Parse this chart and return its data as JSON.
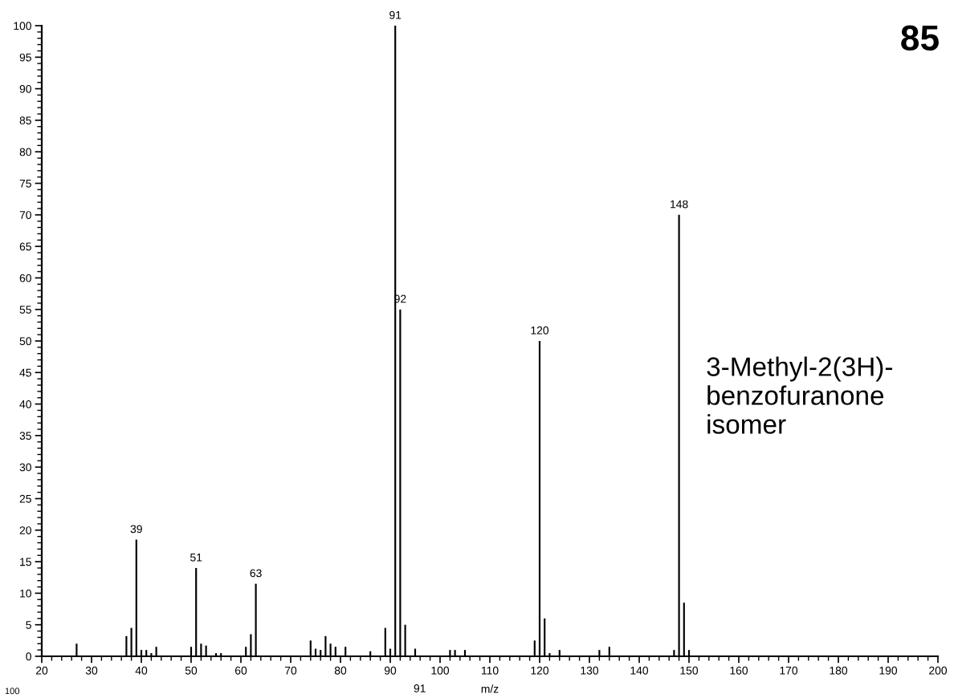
{
  "chart_data": {
    "type": "bar",
    "xlabel": "m/z",
    "color": "#000000",
    "x": [
      27,
      37,
      38,
      39,
      40,
      41,
      42,
      43,
      50,
      51,
      52,
      53,
      55,
      56,
      61,
      62,
      63,
      74,
      75,
      76,
      77,
      78,
      79,
      81,
      86,
      89,
      90,
      91,
      92,
      93,
      95,
      102,
      103,
      105,
      119,
      120,
      121,
      122,
      124,
      132,
      134,
      147,
      148,
      149,
      150
    ],
    "values": [
      2,
      3.2,
      4.5,
      18.5,
      1,
      1,
      0.5,
      1.5,
      1.5,
      14,
      2,
      1.7,
      0.5,
      0.5,
      1.5,
      3.5,
      11.5,
      2.5,
      1.2,
      1,
      3.2,
      2,
      1.5,
      1.5,
      0.8,
      4.5,
      1.2,
      100,
      55,
      5,
      1.2,
      1,
      1,
      1,
      2.5,
      50,
      6,
      0.5,
      1,
      1,
      1.5,
      1,
      70,
      8.5,
      1
    ],
    "xlim": [
      20,
      200
    ],
    "xticks": [
      20,
      30,
      40,
      50,
      60,
      70,
      80,
      90,
      100,
      110,
      120,
      130,
      140,
      150,
      160,
      170,
      180,
      190,
      200
    ],
    "ylim": [
      0,
      100
    ],
    "yticks": [
      0,
      5,
      10,
      15,
      20,
      25,
      30,
      35,
      40,
      45,
      50,
      55,
      60,
      65,
      70,
      75,
      80,
      85,
      90,
      95,
      100
    ],
    "grid": false,
    "legend": false,
    "annotations": [
      {
        "text": "39",
        "x": 39,
        "y": 18.5
      },
      {
        "text": "51",
        "x": 51,
        "y": 14
      },
      {
        "text": "63",
        "x": 63,
        "y": 11.5
      },
      {
        "text": "91",
        "x": 91,
        "y": 100
      },
      {
        "text": "92",
        "x": 92,
        "y": 55
      },
      {
        "text": "120",
        "x": 120,
        "y": 50
      },
      {
        "text": "148",
        "x": 148,
        "y": 70
      },
      "85",
      "3-Methyl-2(3H)-\nbenzofuranone\nisomer",
      "100",
      "91"
    ]
  }
}
